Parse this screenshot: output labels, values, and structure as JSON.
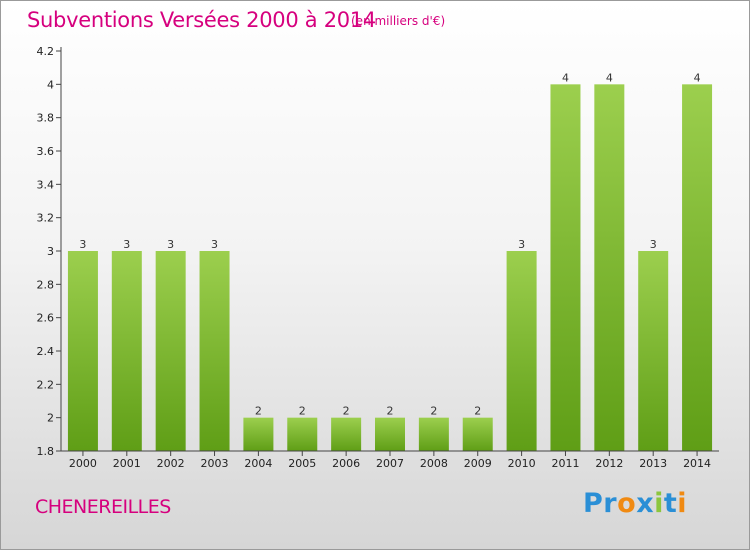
{
  "header": {
    "title": "Subventions Versées 2000 à 2014",
    "subtitle": "(en milliers d'€)"
  },
  "footer": {
    "commune": "CHENEREILLES",
    "logo": "Proxiti"
  },
  "colors": {
    "title": "#d6007e",
    "bar_top": "#9ccf4e",
    "bar_bottom": "#5f9e16"
  },
  "chart_data": {
    "type": "bar",
    "title": "Subventions Versées 2000 à 2014",
    "subtitle": "(en milliers d'€)",
    "xlabel": "",
    "ylabel": "",
    "categories": [
      "2000",
      "2001",
      "2002",
      "2003",
      "2004",
      "2005",
      "2006",
      "2007",
      "2008",
      "2009",
      "2010",
      "2011",
      "2012",
      "2013",
      "2014"
    ],
    "values": [
      3,
      3,
      3,
      3,
      2,
      2,
      2,
      2,
      2,
      2,
      3,
      4,
      4,
      3,
      4
    ],
    "data_labels": [
      "3",
      "3",
      "3",
      "3",
      "2",
      "2",
      "2",
      "2",
      "2",
      "2",
      "3",
      "4",
      "4",
      "3",
      "4"
    ],
    "ylim": [
      1.8,
      4.2
    ],
    "yticks": [
      1.8,
      2,
      2.2,
      2.4,
      2.6,
      2.8,
      3,
      3.2,
      3.4,
      3.6,
      3.8,
      4,
      4.2
    ],
    "ytick_labels": [
      "1.8",
      "2",
      "2.2",
      "2.4",
      "2.6",
      "2.8",
      "3",
      "3.2",
      "3.4",
      "3.6",
      "3.8",
      "4",
      "4.2"
    ],
    "grid": false,
    "legend": "none"
  }
}
